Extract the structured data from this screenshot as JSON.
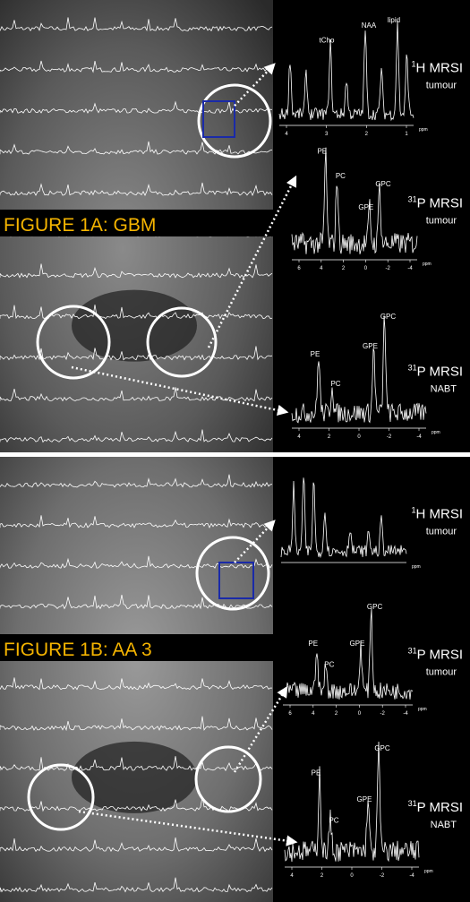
{
  "panels": [
    {
      "title": "FIGURE 1A: GBM",
      "spectra": [
        {
          "nucleus": {
            "mass": "1",
            "label": "H MRSI"
          },
          "region": "tumour",
          "peaks": [
            "tCho",
            "NAA",
            "lipid"
          ],
          "ticks": [
            "4",
            "3",
            "2",
            "1"
          ],
          "unit": "ppm"
        },
        {
          "nucleus": {
            "mass": "31",
            "label": "P MRSI"
          },
          "region": "tumour",
          "peaks": [
            "PE",
            "PC",
            "GPE",
            "GPC"
          ],
          "ticks": [
            "6",
            "4",
            "2",
            "0",
            "-2",
            "-4"
          ],
          "unit": "ppm"
        },
        {
          "nucleus": {
            "mass": "31",
            "label": "P MRSI"
          },
          "region": "NABT",
          "peaks": [
            "PE",
            "PC",
            "GPE",
            "GPC"
          ],
          "ticks": [
            "4",
            "2",
            "0",
            "-2",
            "-4"
          ],
          "unit": "ppm"
        }
      ]
    },
    {
      "title": "FIGURE 1B: AA 3",
      "spectra": [
        {
          "nucleus": {
            "mass": "1",
            "label": "H MRSI"
          },
          "region": "tumour",
          "peaks": [],
          "ticks": [],
          "unit": "ppm"
        },
        {
          "nucleus": {
            "mass": "31",
            "label": "P MRSI"
          },
          "region": "tumour",
          "peaks": [
            "PE",
            "PC",
            "GPE",
            "GPC"
          ],
          "ticks": [
            "6",
            "4",
            "2",
            "0",
            "-2",
            "-4"
          ],
          "unit": "ppm"
        },
        {
          "nucleus": {
            "mass": "31",
            "label": "P MRSI"
          },
          "region": "NABT",
          "peaks": [
            "PE",
            "PC",
            "GPE",
            "GPC"
          ],
          "ticks": [
            "4",
            "2",
            "0",
            "-2",
            "-4"
          ],
          "unit": "ppm"
        }
      ]
    }
  ]
}
